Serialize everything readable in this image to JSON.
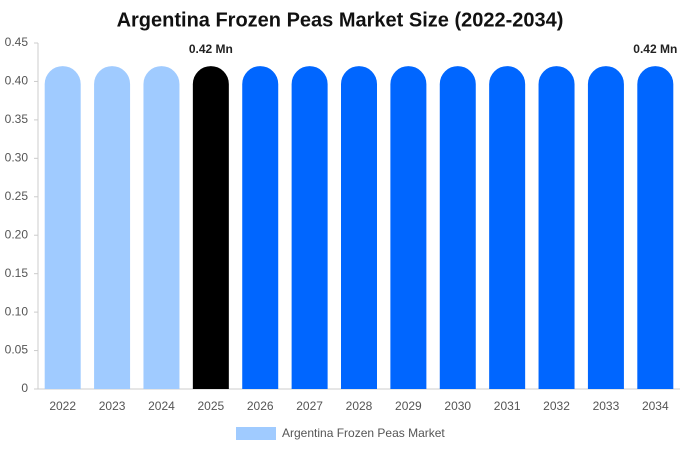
{
  "chart_data": {
    "type": "bar",
    "title": "Argentina Frozen Peas Market Size (2022-2034)",
    "categories": [
      "2022",
      "2023",
      "2024",
      "2025",
      "2026",
      "2027",
      "2028",
      "2029",
      "2030",
      "2031",
      "2032",
      "2033",
      "2034"
    ],
    "series": [
      {
        "name": "Argentina Frozen Peas Market",
        "color": "#a0cbff",
        "values": [
          0.42,
          0.42,
          0.42,
          0.42,
          0.42,
          0.42,
          0.42,
          0.42,
          0.42,
          0.42,
          0.42,
          0.42,
          0.42
        ],
        "value_labels": [
          null,
          null,
          null,
          "0.42 Mn",
          null,
          null,
          null,
          null,
          null,
          null,
          null,
          null,
          "0.42 Mn"
        ],
        "colors": [
          "#a0cbff",
          "#a0cbff",
          "#a0cbff",
          "#000000",
          "#0066ff",
          "#0066ff",
          "#0066ff",
          "#0066ff",
          "#0066ff",
          "#0066ff",
          "#0066ff",
          "#0066ff",
          "#0066ff"
        ]
      }
    ],
    "ylim": [
      0,
      0.45
    ],
    "yticks": [
      0,
      0.05,
      {
        "value": 0.1,
        "label": "0.10"
      },
      0.15,
      {
        "value": 0.2,
        "label": "0.20"
      },
      0.25,
      {
        "value": 0.3,
        "label": "0.30"
      },
      0.35,
      {
        "value": 0.4,
        "label": "0.40"
      },
      0.45
    ],
    "grid": false,
    "legend": "bottom"
  }
}
